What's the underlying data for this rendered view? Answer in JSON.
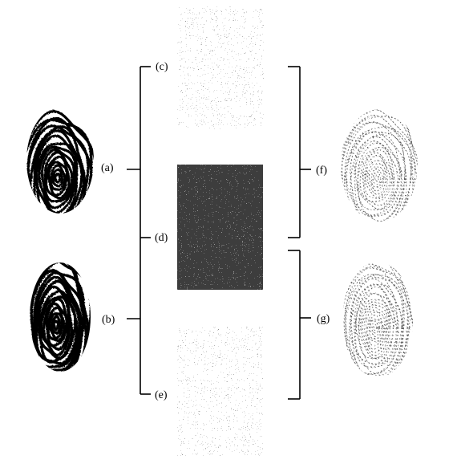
{
  "figure": {
    "labels": {
      "a": "(a)",
      "b": "(b)",
      "c": "(c)",
      "d": "(d)",
      "e": "(e)",
      "f": "(f)",
      "g": "(g)"
    },
    "panels": [
      {
        "id": "a",
        "kind": "fingerprint",
        "tone": "dark original"
      },
      {
        "id": "b",
        "kind": "fingerprint",
        "tone": "dark original"
      },
      {
        "id": "c",
        "kind": "noise-share",
        "tone": "light"
      },
      {
        "id": "d",
        "kind": "noise-share",
        "tone": "dark"
      },
      {
        "id": "e",
        "kind": "noise-share",
        "tone": "light"
      },
      {
        "id": "f",
        "kind": "fingerprint",
        "tone": "faint reconstructed"
      },
      {
        "id": "g",
        "kind": "fingerprint",
        "tone": "faint reconstructed"
      }
    ],
    "colors": {
      "ink": "#000000",
      "background": "#ffffff"
    }
  }
}
